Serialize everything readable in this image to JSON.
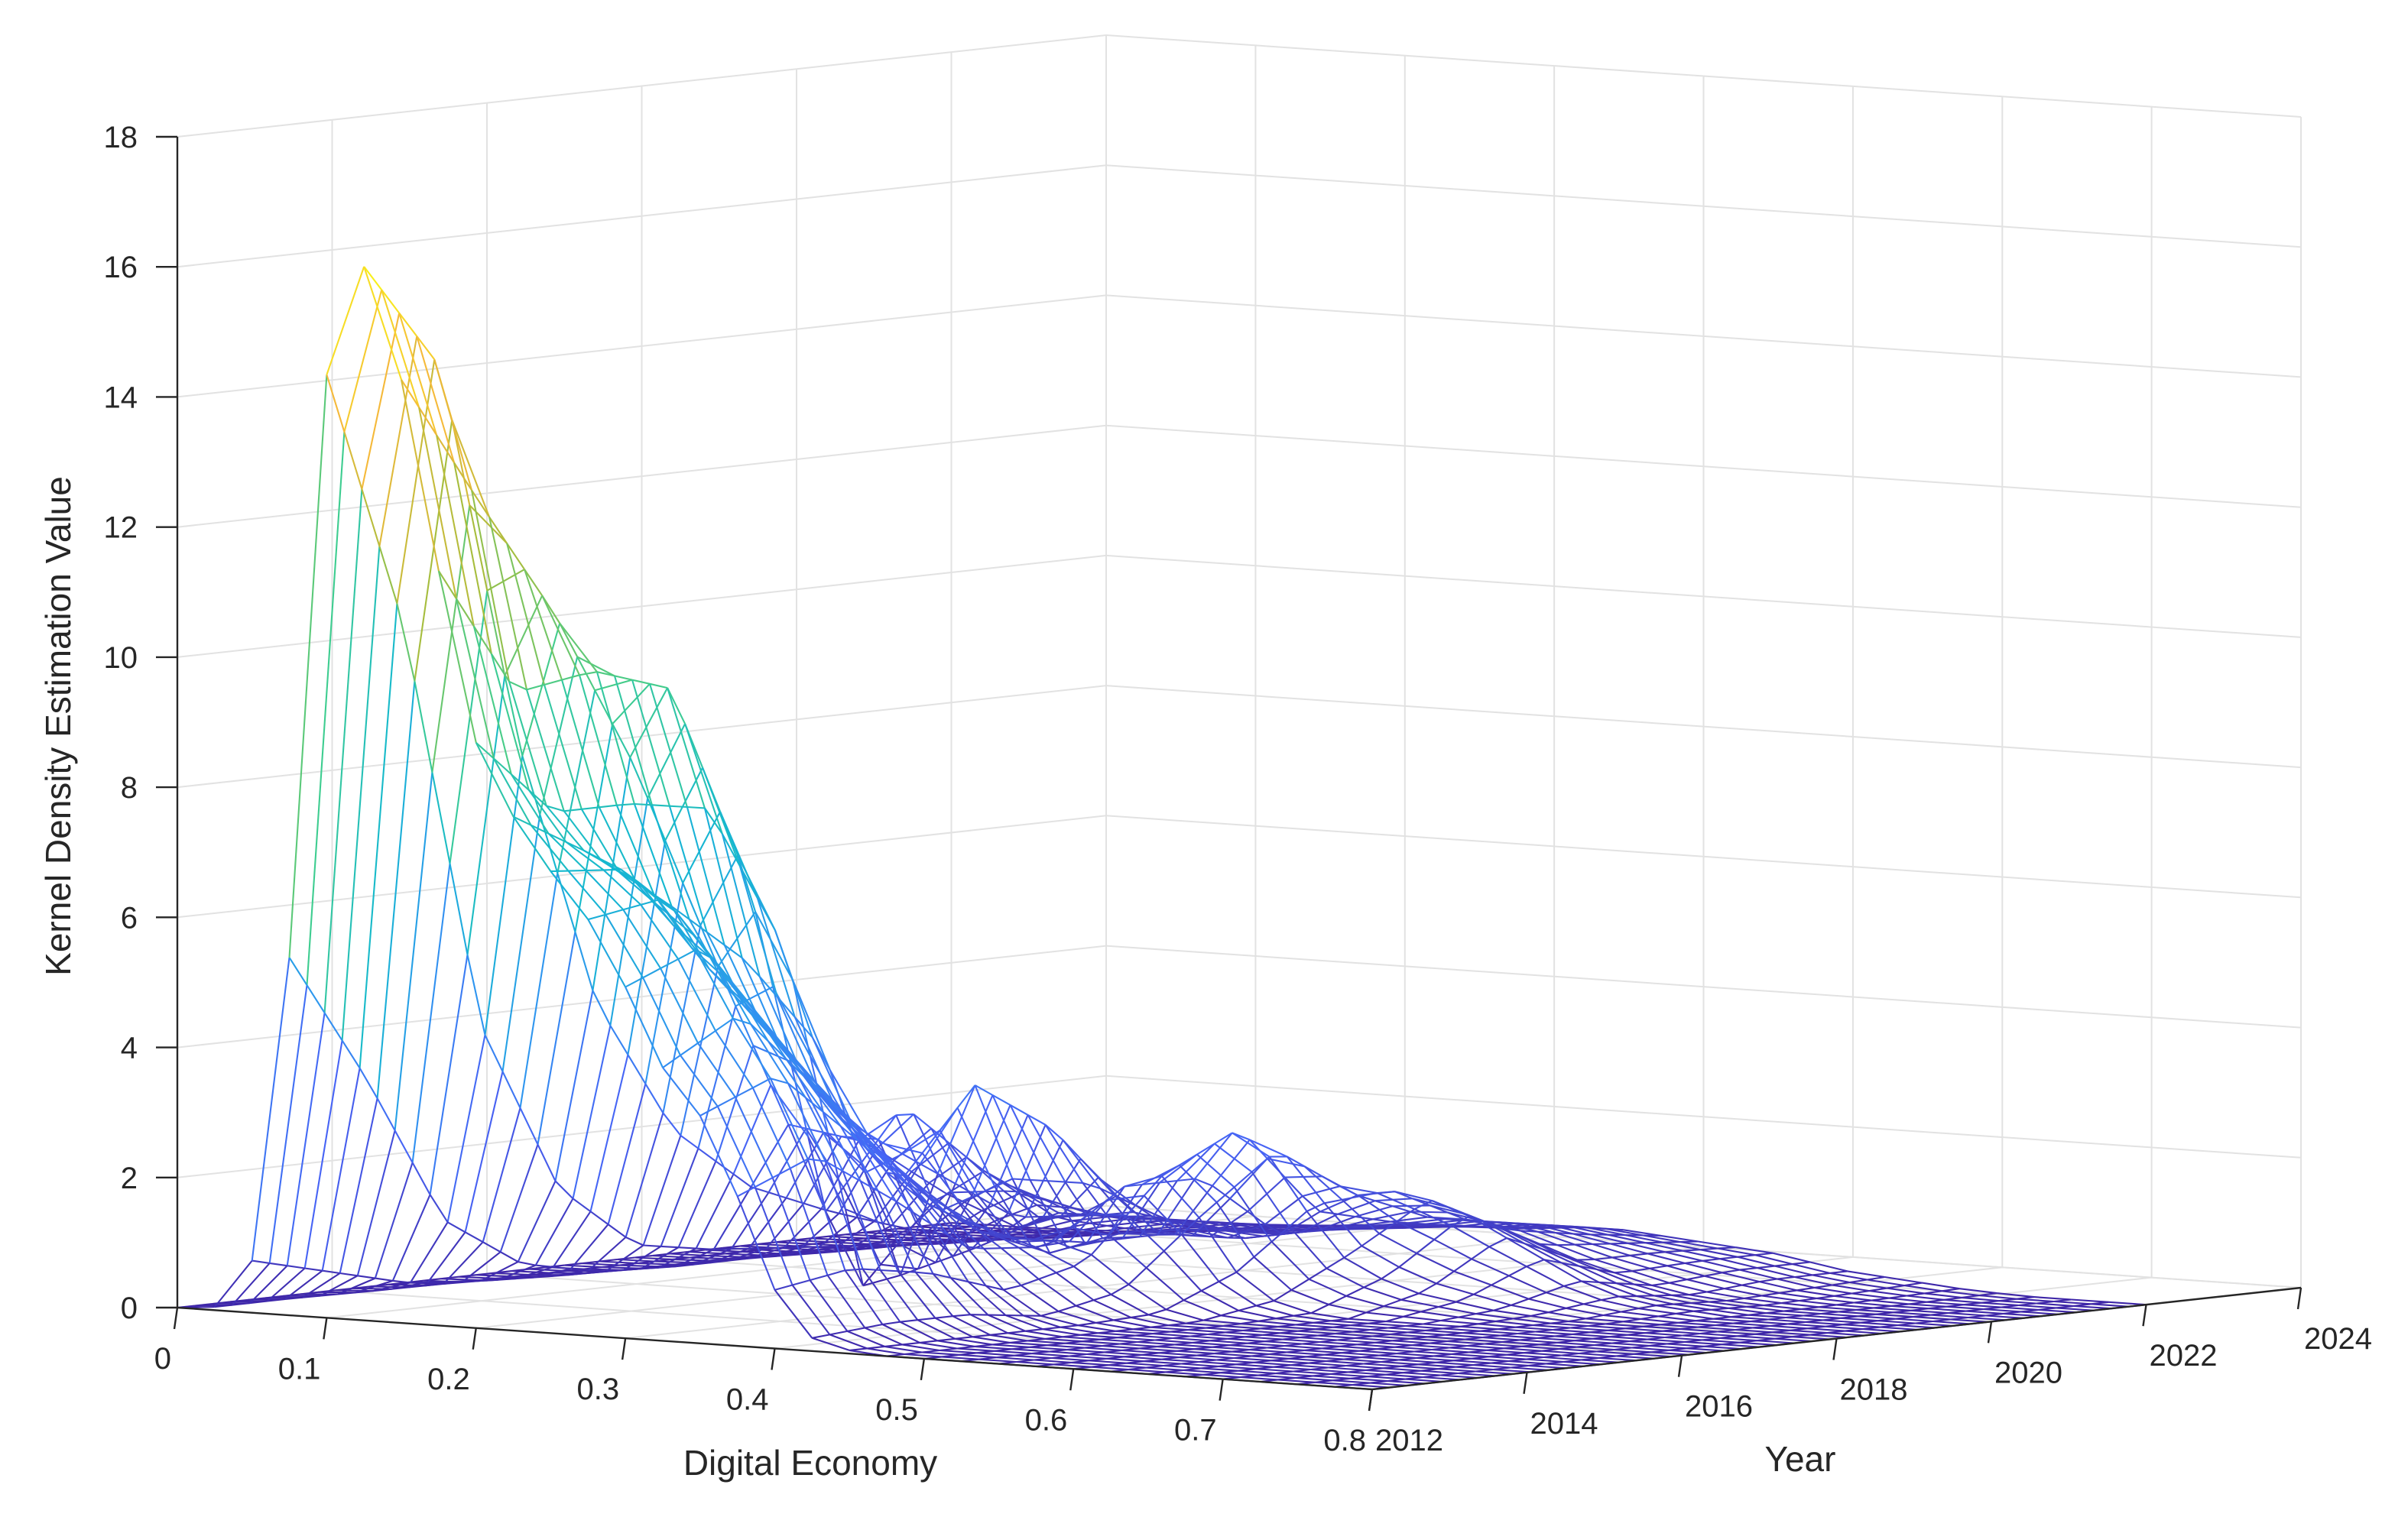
{
  "chart_data": {
    "type": "surface3d",
    "title": "",
    "xlabel": "Digital Economy",
    "ylabel": "Year",
    "zlabel": "Kernel Density Estimation Value",
    "xlim": [
      0,
      0.8
    ],
    "ylim": [
      2012,
      2024
    ],
    "zlim": [
      0,
      18
    ],
    "x_ticks": [
      "0",
      "0.1",
      "0.2",
      "0.3",
      "0.4",
      "0.5",
      "0.6",
      "0.7",
      "0.8"
    ],
    "y_ticks": [
      "2012",
      "2014",
      "2016",
      "2018",
      "2020",
      "2022",
      "2024"
    ],
    "z_ticks": [
      "0",
      "2",
      "4",
      "6",
      "8",
      "10",
      "12",
      "14",
      "16",
      "18"
    ],
    "grid": true,
    "colormap": [
      "#3e26a8",
      "#4764f5",
      "#2f95f0",
      "#14b8d0",
      "#3fcd8f",
      "#a8bd3c",
      "#f5b93a",
      "#f9fb15"
    ],
    "x_samples": [
      0,
      0.025,
      0.05,
      0.075,
      0.1,
      0.125,
      0.15,
      0.175,
      0.2,
      0.225,
      0.25,
      0.275,
      0.3,
      0.325,
      0.35,
      0.375,
      0.4,
      0.425,
      0.45,
      0.475,
      0.5,
      0.525,
      0.55,
      0.575,
      0.6,
      0.625,
      0.65,
      0.675,
      0.7,
      0.725,
      0.75,
      0.775,
      0.8
    ],
    "years": [
      2012,
      2013,
      2014,
      2015,
      2016,
      2017,
      2018,
      2019,
      2020,
      2021,
      2022
    ],
    "density": [
      [
        0,
        0.05,
        0.8,
        5.5,
        14.5,
        16.2,
        14.5,
        11.6,
        9.0,
        7.9,
        7.1,
        6.4,
        5.4,
        4.2,
        3.5,
        2.3,
        0.9,
        0.2,
        0.05,
        0,
        0,
        0,
        0,
        0,
        0,
        0,
        0,
        0,
        0,
        0,
        0,
        0,
        0
      ],
      [
        0,
        0.05,
        0.5,
        3.5,
        10.5,
        14.5,
        12.5,
        9.6,
        7.8,
        7.2,
        7.0,
        6.6,
        5.9,
        4.9,
        4.0,
        2.8,
        1.1,
        0.3,
        0.05,
        0,
        0,
        0,
        0,
        0,
        0,
        0,
        0,
        0,
        0,
        0,
        0,
        0,
        0
      ],
      [
        0,
        0.03,
        0.2,
        1.2,
        4.2,
        8.6,
        10.6,
        9.8,
        7.8,
        6.3,
        5.4,
        4.9,
        4.3,
        3.6,
        2.9,
        2.0,
        0.9,
        0.3,
        0.05,
        0,
        0,
        0,
        0,
        0,
        0,
        0,
        0,
        0,
        0,
        0,
        0,
        0,
        0
      ],
      [
        0,
        0.02,
        0.1,
        0.4,
        1.6,
        4.5,
        8.2,
        9.4,
        7.6,
        5.3,
        4.0,
        3.3,
        2.8,
        2.3,
        1.7,
        1.1,
        0.5,
        0.15,
        0.05,
        0,
        0,
        0,
        0,
        0,
        0,
        0,
        0,
        0,
        0,
        0,
        0,
        0,
        0
      ],
      [
        0,
        0.01,
        0.05,
        0.15,
        0.6,
        2.4,
        5.2,
        6.3,
        5.3,
        3.8,
        2.6,
        1.8,
        1.4,
        1.2,
        1.1,
        1.0,
        0.8,
        0.4,
        0.1,
        0,
        0,
        0,
        0,
        0,
        0,
        0,
        0,
        0,
        0,
        0,
        0,
        0,
        0
      ],
      [
        0,
        0.01,
        0.03,
        0.1,
        0.4,
        1.4,
        2.4,
        1.1,
        0.0,
        0.2,
        1.8,
        3.2,
        1.8,
        0.7,
        0.9,
        1.8,
        2.0,
        1.4,
        0.6,
        0.2,
        0.05,
        0,
        0,
        0,
        0,
        0,
        0,
        0,
        0,
        0,
        0,
        0,
        0
      ],
      [
        0,
        0.01,
        0.03,
        0.1,
        0.3,
        0.9,
        2.0,
        2.6,
        1.3,
        0.5,
        1.0,
        2.4,
        1.6,
        0.9,
        0.9,
        1.8,
        2.6,
        2.3,
        1.5,
        0.8,
        0.5,
        0.3,
        0.2,
        0.1,
        0.05,
        0,
        0,
        0,
        0,
        0,
        0,
        0,
        0
      ],
      [
        0,
        0.01,
        0.02,
        0.06,
        0.2,
        0.5,
        1.1,
        1.5,
        1.2,
        0.9,
        0.9,
        1.0,
        0.9,
        0.8,
        0.7,
        0.8,
        1.2,
        1.5,
        1.6,
        1.5,
        1.3,
        1.0,
        0.7,
        0.4,
        0.2,
        0.1,
        0.05,
        0,
        0,
        0,
        0,
        0,
        0
      ],
      [
        0,
        0.01,
        0.02,
        0.04,
        0.1,
        0.2,
        0.4,
        0.6,
        0.7,
        0.7,
        0.7,
        0.6,
        0.6,
        0.6,
        0.7,
        0.8,
        0.9,
        1.0,
        1.0,
        0.9,
        0.7,
        0.5,
        0.35,
        0.2,
        0.1,
        0.05,
        0.02,
        0,
        0,
        0,
        0,
        0,
        0
      ],
      [
        0,
        0.01,
        0.02,
        0.03,
        0.06,
        0.1,
        0.2,
        0.3,
        0.4,
        0.5,
        0.5,
        0.5,
        0.5,
        0.6,
        0.6,
        0.7,
        0.7,
        0.8,
        0.8,
        0.7,
        0.6,
        0.5,
        0.4,
        0.3,
        0.2,
        0.1,
        0.05,
        0.02,
        0,
        0,
        0,
        0,
        0
      ],
      [
        0,
        0.01,
        0.01,
        0.02,
        0.04,
        0.06,
        0.1,
        0.15,
        0.2,
        0.3,
        0.35,
        0.4,
        0.4,
        0.45,
        0.5,
        0.5,
        0.55,
        0.6,
        0.6,
        0.55,
        0.5,
        0.45,
        0.4,
        0.3,
        0.2,
        0.15,
        0.1,
        0.05,
        0.02,
        0,
        0,
        0,
        0
      ]
    ]
  }
}
